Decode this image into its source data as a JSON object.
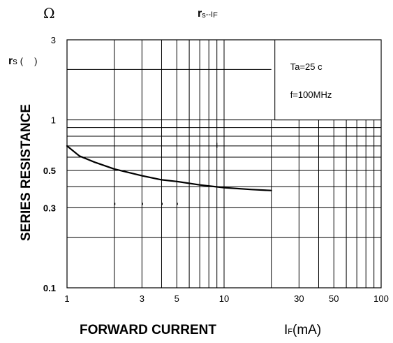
{
  "chart_data": {
    "type": "line",
    "title": {
      "main": "r",
      "sub1": "s",
      "mid": "--I",
      "sub2": "F"
    },
    "ylabel": "SERIES RESISTANCE",
    "yunit": {
      "symbol": "Ω",
      "main": "r",
      "sub": "s",
      "paren_open": "(",
      "paren_close": ")"
    },
    "xlabel": "FORWARD CURRENT",
    "xunit": {
      "main": "I",
      "sub": "F",
      "tail": "(mA)"
    },
    "x_scale": "log",
    "y_scale": "log",
    "xlim": [
      1,
      100
    ],
    "ylim": [
      0.1,
      3
    ],
    "grid": true,
    "x_ticks": [
      {
        "value": 1,
        "label": "1"
      },
      {
        "value": 3,
        "label": "3"
      },
      {
        "value": 5,
        "label": "5"
      },
      {
        "value": 10,
        "label": "10"
      },
      {
        "value": 30,
        "label": "30"
      },
      {
        "value": 50,
        "label": "50"
      },
      {
        "value": 100,
        "label": "100"
      }
    ],
    "y_ticks": [
      {
        "value": 3,
        "label": "3",
        "bold": false
      },
      {
        "value": 1,
        "label": "1",
        "bold": false
      },
      {
        "value": 0.5,
        "label": "0.5",
        "bold": true
      },
      {
        "value": 0.3,
        "label": "0.3",
        "bold": true
      },
      {
        "value": 0.1,
        "label": "0.1",
        "bold": true
      }
    ],
    "annotations": [
      "Ta=25 c",
      "f=100MHz"
    ],
    "series": [
      {
        "x": [
          1,
          1.2,
          1.5,
          2,
          3,
          4,
          5,
          7,
          10,
          15,
          20
        ],
        "values": [
          0.7,
          0.61,
          0.56,
          0.51,
          0.465,
          0.44,
          0.43,
          0.41,
          0.395,
          0.385,
          0.38
        ]
      }
    ]
  }
}
